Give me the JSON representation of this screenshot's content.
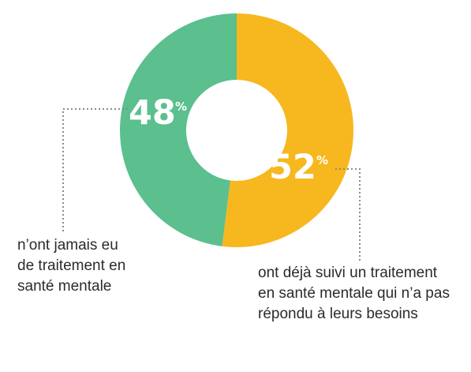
{
  "chart_data": {
    "type": "pie",
    "donut": true,
    "slices": [
      {
        "value": 52,
        "value_label": "52",
        "unit": "%",
        "color": "#F7B71E",
        "label_lines": [
          "ont déjà suivi un traitement",
          "en santé mentale qui n’a pas",
          "répondu à leurs besoins"
        ]
      },
      {
        "value": 48,
        "value_label": "48",
        "unit": "%",
        "color": "#5BBF8E",
        "label_lines": [
          "n’ont jamais eu",
          "de traitement en",
          "santé mentale"
        ]
      }
    ],
    "legend": "none",
    "title": ""
  }
}
